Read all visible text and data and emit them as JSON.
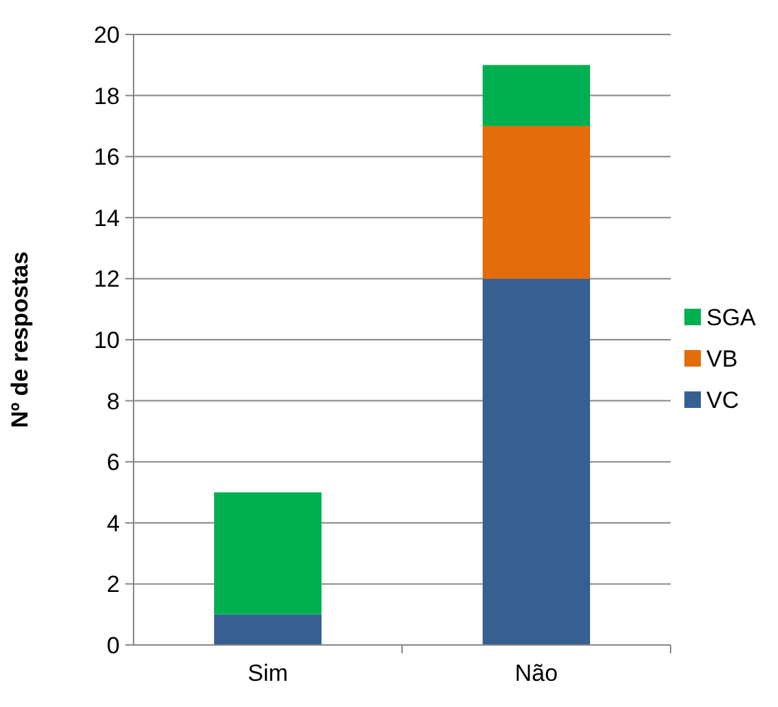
{
  "chart_data": {
    "type": "bar",
    "stacked": true,
    "ylabel": "Nº de respostas",
    "categories": [
      "Sim",
      "Não"
    ],
    "series": [
      {
        "name": "VC",
        "color": "#376092",
        "values": [
          1,
          12
        ]
      },
      {
        "name": "VB",
        "color": "#e46c0a",
        "values": [
          0,
          5
        ]
      },
      {
        "name": "SGA",
        "color": "#00b050",
        "values": [
          4,
          2
        ]
      }
    ],
    "ylim": [
      0,
      20
    ],
    "yticks": [
      0,
      2,
      4,
      6,
      8,
      10,
      12,
      14,
      16,
      18,
      20
    ],
    "grid": "y",
    "legend": "right"
  }
}
